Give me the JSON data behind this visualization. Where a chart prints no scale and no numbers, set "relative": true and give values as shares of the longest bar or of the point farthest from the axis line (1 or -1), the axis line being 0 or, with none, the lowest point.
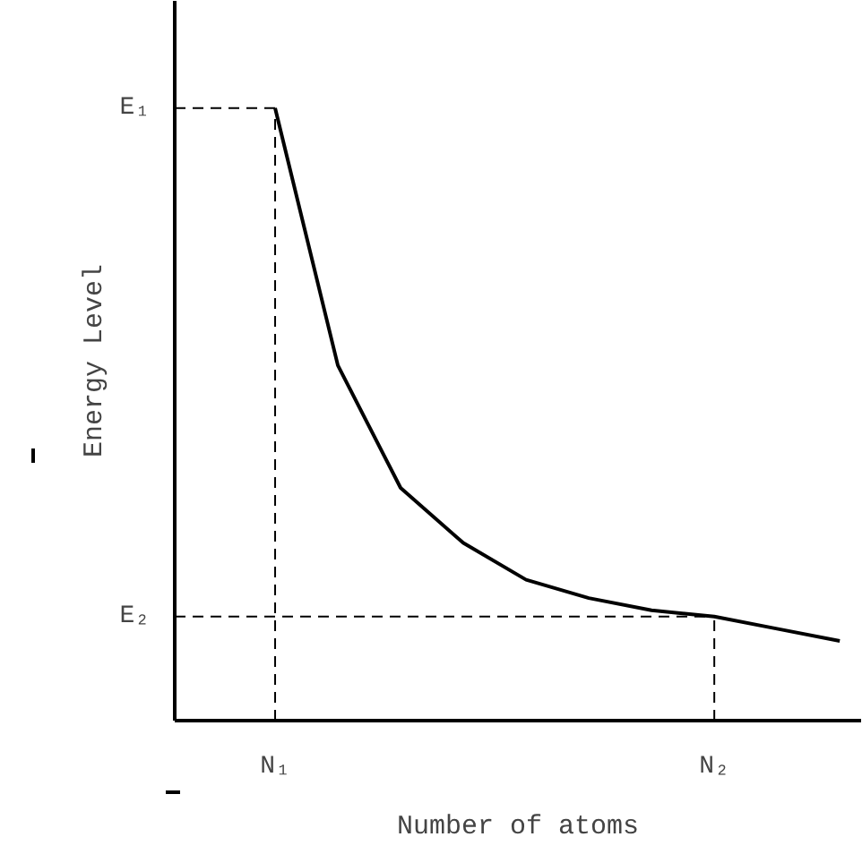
{
  "chart_data": {
    "type": "line",
    "relative": true,
    "xlabel": "Number of atoms",
    "ylabel": "Energy Level",
    "categories": [
      "N₁",
      null,
      null,
      null,
      null,
      null,
      null,
      "N₂",
      null,
      null
    ],
    "series": [
      {
        "color": "#000000",
        "values": [
          1,
          0.58,
          0.38,
          0.29,
          0.23,
          0.2,
          0.18,
          0.17,
          0.15,
          0.13
        ]
      }
    ],
    "ref_lines": [
      {
        "axis": "y",
        "value": 1,
        "label": "E₁",
        "line_style": "dashed"
      },
      {
        "axis": "y",
        "value": 0.17,
        "label": "E₂",
        "line_style": "dashed"
      },
      {
        "axis": "x",
        "value": "N₁",
        "line_style": "dashed"
      },
      {
        "axis": "x",
        "value": "N₂",
        "line_style": "dashed"
      }
    ],
    "grid": false,
    "marker": "none",
    "line_style": "solid"
  }
}
